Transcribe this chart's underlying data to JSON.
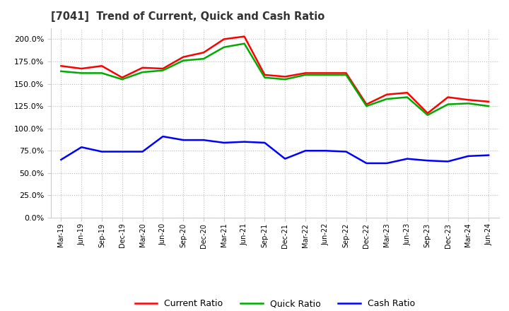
{
  "title": "[7041]  Trend of Current, Quick and Cash Ratio",
  "x_labels": [
    "Mar-19",
    "Jun-19",
    "Sep-19",
    "Dec-19",
    "Mar-20",
    "Jun-20",
    "Sep-20",
    "Dec-20",
    "Mar-21",
    "Jun-21",
    "Sep-21",
    "Dec-21",
    "Mar-22",
    "Jun-22",
    "Sep-22",
    "Dec-22",
    "Mar-23",
    "Jun-23",
    "Sep-23",
    "Dec-23",
    "Mar-24",
    "Jun-24"
  ],
  "current_ratio": [
    1.7,
    1.67,
    1.7,
    1.57,
    1.68,
    1.67,
    1.8,
    1.85,
    2.0,
    2.03,
    1.6,
    1.58,
    1.62,
    1.62,
    1.62,
    1.27,
    1.38,
    1.4,
    1.17,
    1.35,
    1.32,
    1.3
  ],
  "quick_ratio": [
    1.64,
    1.62,
    1.62,
    1.55,
    1.63,
    1.65,
    1.76,
    1.78,
    1.91,
    1.95,
    1.57,
    1.55,
    1.6,
    1.6,
    1.6,
    1.25,
    1.33,
    1.35,
    1.15,
    1.27,
    1.28,
    1.25
  ],
  "cash_ratio": [
    0.65,
    0.79,
    0.74,
    0.74,
    0.74,
    0.91,
    0.87,
    0.87,
    0.84,
    0.85,
    0.84,
    0.66,
    0.75,
    0.75,
    0.74,
    0.61,
    0.61,
    0.66,
    0.64,
    0.63,
    0.69,
    0.7
  ],
  "current_color": "#FF0000",
  "quick_color": "#00AA00",
  "cash_color": "#0000FF",
  "ylim": [
    0.0,
    2.125
  ],
  "yticks": [
    0.0,
    0.25,
    0.5,
    0.75,
    1.0,
    1.25,
    1.5,
    1.75,
    2.0
  ],
  "bg_color": "#FFFFFF",
  "plot_bg_color": "#FFFFFF",
  "grid_color": "#BBBBBB",
  "legend_labels": [
    "Current Ratio",
    "Quick Ratio",
    "Cash Ratio"
  ],
  "line_width": 1.8
}
